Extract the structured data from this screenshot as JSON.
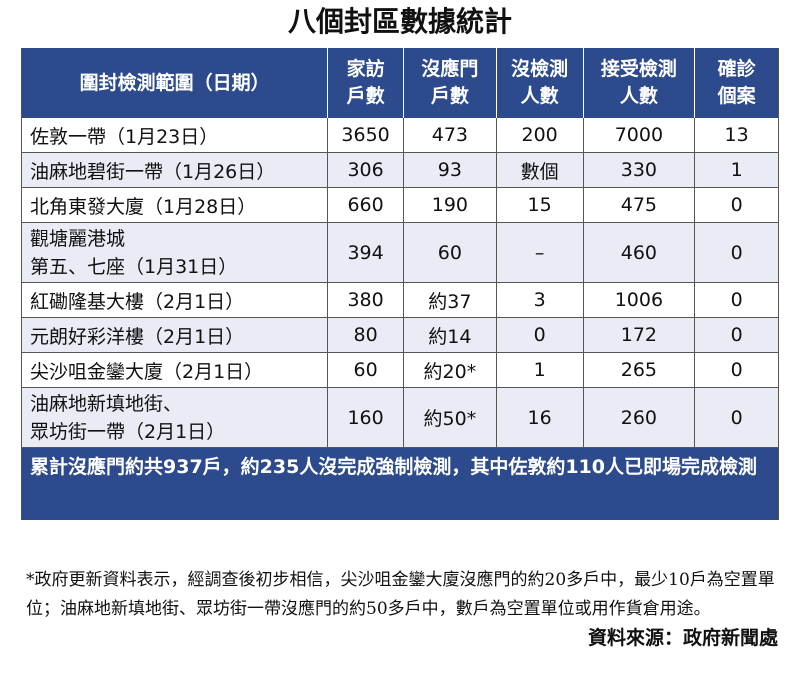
{
  "title": "八個封區數據統計",
  "headers": [
    [
      "圍封檢測範圍（日期）"
    ],
    [
      "家訪",
      "戶數"
    ],
    [
      "沒應門",
      "戶數"
    ],
    [
      "沒檢測",
      "人數"
    ],
    [
      "接受檢測",
      "人數"
    ],
    [
      "確診",
      "個案"
    ]
  ],
  "rows": [
    {
      "area": [
        "佐敦一帶（1月23日）"
      ],
      "visited": "3650",
      "no_answer": "473",
      "untested": "200",
      "tested": "7000",
      "confirmed": "13"
    },
    {
      "area": [
        "油麻地碧街一帶（1月26日）"
      ],
      "visited": "306",
      "no_answer": "93",
      "untested": "數個",
      "tested": "330",
      "confirmed": "1"
    },
    {
      "area": [
        "北角東發大廈（1月28日）"
      ],
      "visited": "660",
      "no_answer": "190",
      "untested": "15",
      "tested": "475",
      "confirmed": "0"
    },
    {
      "area": [
        "觀塘麗港城",
        "第五、七座（1月31日）"
      ],
      "visited": "394",
      "no_answer": "60",
      "untested": "–",
      "tested": "460",
      "confirmed": "0"
    },
    {
      "area": [
        "紅磡隆基大樓（2月1日）"
      ],
      "visited": "380",
      "no_answer": "約37",
      "untested": "3",
      "tested": "1006",
      "confirmed": "0"
    },
    {
      "area": [
        "元朗好彩洋樓（2月1日）"
      ],
      "visited": "80",
      "no_answer": "約14",
      "untested": "0",
      "tested": "172",
      "confirmed": "0"
    },
    {
      "area": [
        "尖沙咀金鑾大廈（2月1日）"
      ],
      "visited": "60",
      "no_answer": "約20*",
      "untested": "1",
      "tested": "265",
      "confirmed": "0"
    },
    {
      "area": [
        "油麻地新填地街、",
        "眾坊街一帶（2月1日）"
      ],
      "visited": "160",
      "no_answer": "約50*",
      "untested": "16",
      "tested": "260",
      "confirmed": "0"
    }
  ],
  "summary": "累計沒應門約共937戶，約235人沒完成強制檢測，其中佐敦約110人已即場完成檢測",
  "note": "*政府更新資料表示，經調查後初步相信，尖沙咀金鑾大廈沒應門的約20多戶中，最少10戶為空置單位；油麻地新填地街、眾坊街一帶沒應門的約50多戶中，數戶為空置單位或用作貨倉用途。",
  "source": "資料來源：政府新聞處",
  "colors": {
    "header_bg": "#2d4b8c",
    "stripe_bg": "#e9ecf4",
    "header_text": "#ffffff"
  }
}
